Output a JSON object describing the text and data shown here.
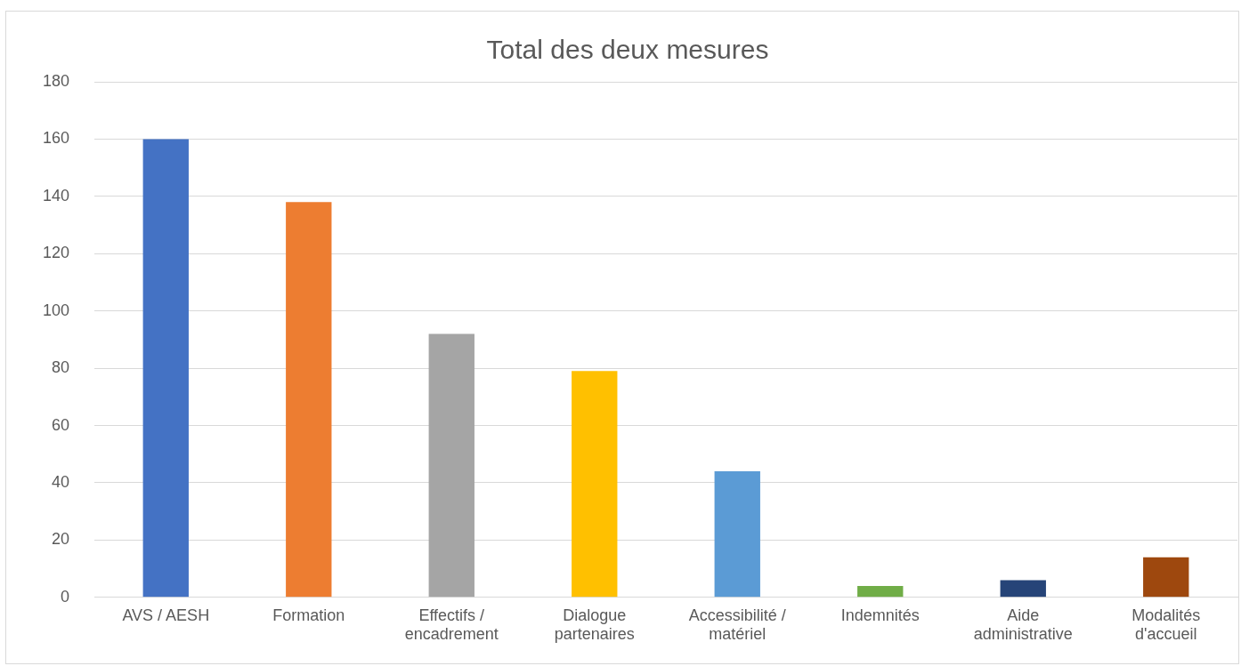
{
  "chart_data": {
    "type": "bar",
    "title": "Total des deux mesures",
    "categories": [
      "AVS / AESH",
      "Formation",
      "Effectifs / encadrement",
      "Dialogue partenaires",
      "Accessibilité / matériel",
      "Indemnités",
      "Aide administrative",
      "Modalités d'accueil"
    ],
    "values": [
      160,
      138,
      92,
      79,
      44,
      4,
      6,
      14
    ],
    "colors": [
      "#4472c4",
      "#ed7d31",
      "#a5a5a5",
      "#ffc000",
      "#5b9bd5",
      "#70ad47",
      "#264478",
      "#9e480e"
    ],
    "ylim": [
      0,
      180
    ],
    "yticks": [
      0,
      20,
      40,
      60,
      80,
      100,
      120,
      140,
      160,
      180
    ],
    "grid": "y"
  }
}
